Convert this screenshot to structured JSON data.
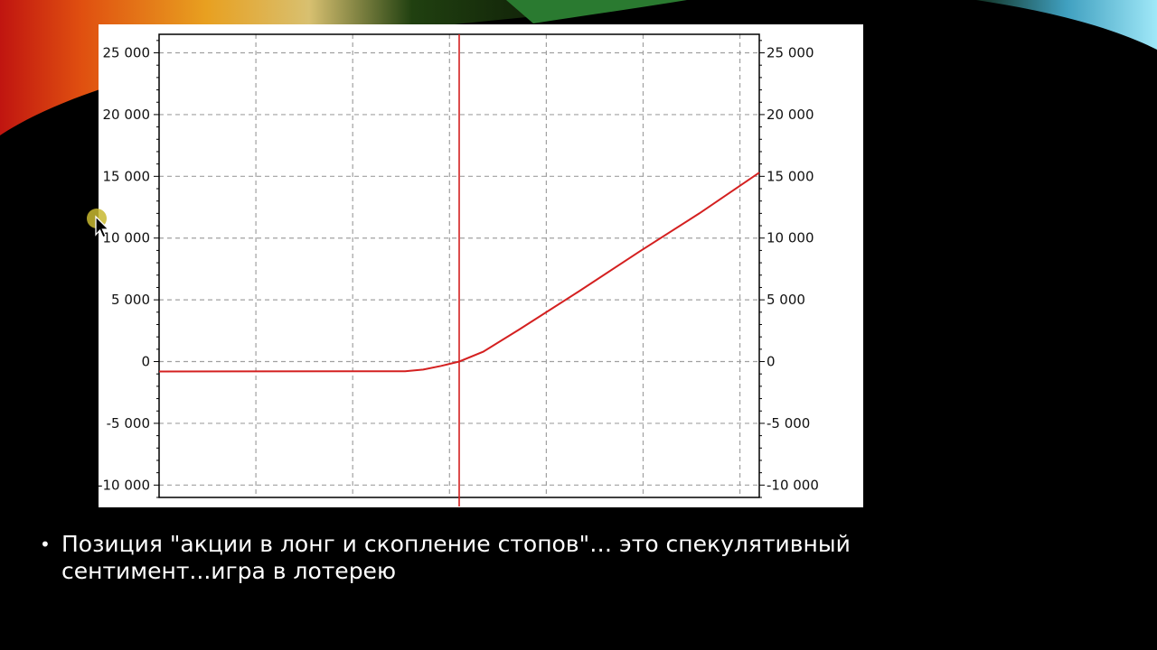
{
  "slide": {
    "caption": "Позиция \"акции в лонг и скопление стопов\"… это спекулятивный сентимент...игра в лотерею",
    "bullet_icon": "bullet-dot-icon",
    "cursor_icon": "mouse-pointer-highlight-icon"
  },
  "colors": {
    "background": "#000000",
    "chart_background": "#ffffff",
    "line": "#d42020",
    "grid": "#a0a0a0"
  },
  "chart_data": {
    "type": "line",
    "title": "",
    "xlabel": "",
    "ylabel": "",
    "ylim": [
      -11000,
      26500
    ],
    "yticks": [
      25000,
      20000,
      15000,
      10000,
      5000,
      0,
      -5000,
      -10000
    ],
    "ytick_labels": [
      "25 000",
      "20 000",
      "15 000",
      "10 000",
      "5 000",
      "0",
      "-5 000",
      "-10 000"
    ],
    "secondary_ytick_labels": [
      "25 000",
      "20 000",
      "15 000",
      "10 000",
      "5 000",
      "0",
      "-5 000",
      "-10 000"
    ],
    "x_gridlines": 6,
    "x_tick_labels_visible": false,
    "grid": true,
    "grid_style": "dashed",
    "legend": "none",
    "series": [
      {
        "points": [
          [
            0.0,
            -800
          ],
          [
            0.41,
            -780
          ],
          [
            0.44,
            -650
          ],
          [
            0.47,
            -350
          ],
          [
            0.5,
            0
          ],
          [
            0.54,
            800
          ],
          [
            0.6,
            2600
          ],
          [
            0.7,
            5700
          ],
          [
            0.8,
            8900
          ],
          [
            0.9,
            12000
          ],
          [
            1.0,
            15300
          ]
        ]
      }
    ],
    "vertical_marker_x": 0.5
  }
}
